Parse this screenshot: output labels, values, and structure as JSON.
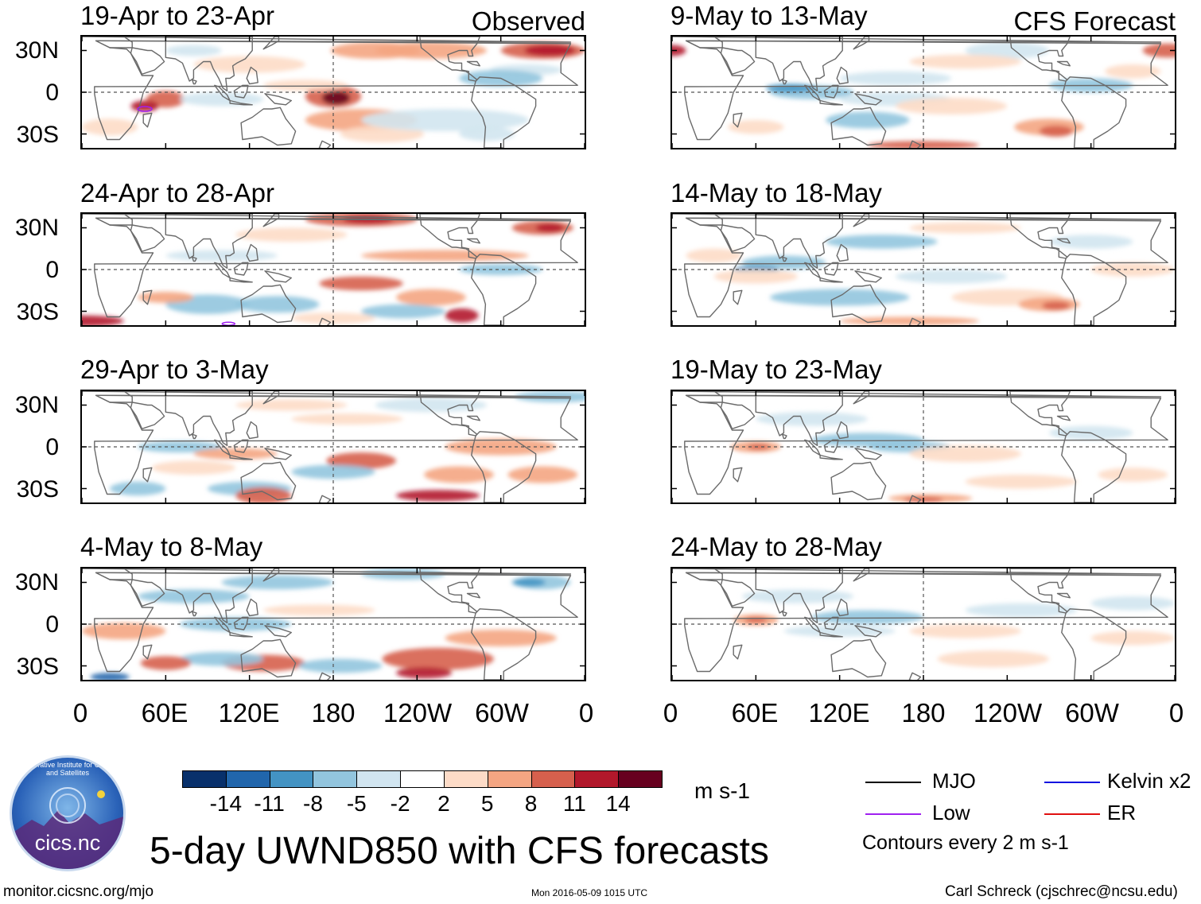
{
  "colors": {
    "scale": [
      "#08306b",
      "#2166ac",
      "#4393c3",
      "#92c5de",
      "#d1e5f0",
      "#ffffff",
      "#fddbc7",
      "#f4a582",
      "#d6604d",
      "#b2182b",
      "#67001f"
    ],
    "grid": "#555555",
    "coast": "#6a6a6a",
    "mjo": "#000000",
    "low": "#a020f0",
    "kelvin": "#1010e0",
    "er": "#e01010"
  },
  "header": {
    "observed_label": "Observed",
    "forecast_label": "CFS Forecast"
  },
  "lat_labels": [
    "30N",
    "0",
    "30S"
  ],
  "lon_labels": [
    "0",
    "60E",
    "120E",
    "180",
    "120W",
    "60W",
    "0"
  ],
  "panels": [
    {
      "title": "19-Apr to 23-Apr",
      "type": "observed",
      "id": "p1"
    },
    {
      "title": "24-Apr to 28-Apr",
      "type": "observed",
      "id": "p2"
    },
    {
      "title": "29-Apr to 3-May",
      "type": "observed",
      "id": "p3"
    },
    {
      "title": "4-May to 8-May",
      "type": "observed",
      "id": "p4"
    },
    {
      "title": "9-May to 13-May",
      "type": "forecast",
      "id": "p5"
    },
    {
      "title": "14-May to 18-May",
      "type": "forecast",
      "id": "p6"
    },
    {
      "title": "19-May to 23-May",
      "type": "forecast",
      "id": "p7"
    },
    {
      "title": "24-May to 28-May",
      "type": "forecast",
      "id": "p8"
    }
  ],
  "colorbar": {
    "labels": [
      "-14",
      "-11",
      "-8",
      "-5",
      "-2",
      "2",
      "5",
      "8",
      "11",
      "14"
    ],
    "units": "m s-1"
  },
  "legend": {
    "mjo": "MJO",
    "kelvin": "Kelvin x2",
    "low": "Low",
    "er": "ER",
    "contour_note": "Contours every 2 m s-1"
  },
  "main_title": "5-day UWND850 with CFS forecasts",
  "footer": {
    "left": "monitor.cicsnc.org/mjo",
    "center": "Mon 2016-05-09 1015 UTC",
    "right": "Carl Schreck (cjschrec@ncsu.edu)"
  },
  "logo": {
    "ring_text": "Cooperative Institute for Climate and Satellites",
    "name": "cics.nc"
  }
}
